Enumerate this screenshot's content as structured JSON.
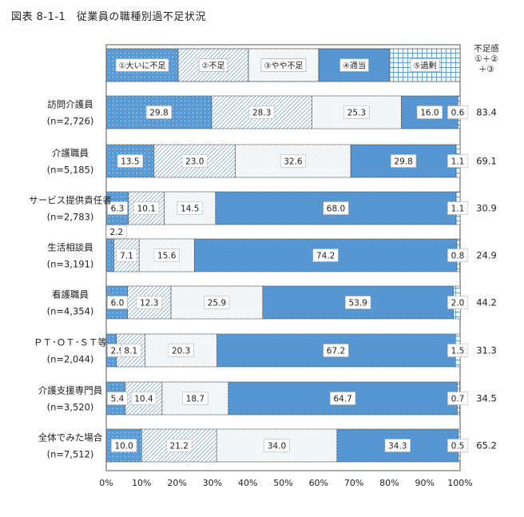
{
  "title": "図表 8-1-1　従業員の職種別過不足状況",
  "chart_data": {
    "type": "bar",
    "orientation": "horizontal",
    "stacked": "100%",
    "title": "図表 8-1-1　従業員の職種別過不足状況",
    "categories": [
      {
        "name": "訪問介護員",
        "n": "(n=2,726)"
      },
      {
        "name": "介護職員",
        "n": "(n=5,185)"
      },
      {
        "name": "サービス提供責任者",
        "n": "(n=2,783)"
      },
      {
        "name": "生活相談員",
        "n": "(n=3,191)"
      },
      {
        "name": "看護職員",
        "n": "(n=4,354)"
      },
      {
        "name": "ＰＴ･ＯＴ･ＳＴ等",
        "n": "(n=2,044)"
      },
      {
        "name": "介護支援専門員",
        "n": "(n=3,520)"
      },
      {
        "name": "全体でみた場合",
        "n": "(n=7,512)"
      }
    ],
    "series": [
      {
        "name": "①大いに不足",
        "values": [
          29.8,
          13.5,
          6.3,
          2.2,
          6.0,
          2.9,
          5.4,
          10.0
        ]
      },
      {
        "name": "②不足",
        "values": [
          28.3,
          23.0,
          10.1,
          7.1,
          12.3,
          8.1,
          10.4,
          21.2
        ]
      },
      {
        "name": "③やや不足",
        "values": [
          25.3,
          32.6,
          14.5,
          15.6,
          25.9,
          20.3,
          18.7,
          34.0
        ]
      },
      {
        "name": "④適当",
        "values": [
          16.0,
          29.8,
          68.0,
          74.2,
          53.9,
          67.2,
          64.7,
          34.3
        ]
      },
      {
        "name": "⑤過剰",
        "values": [
          0.6,
          1.1,
          1.1,
          0.8,
          2.0,
          1.5,
          0.7,
          0.5
        ]
      }
    ],
    "shortage_header": [
      "不足感",
      "①＋②",
      "＋③"
    ],
    "shortage_values": [
      "83.4",
      "69.1",
      "30.9",
      "24.9",
      "44.2",
      "31.3",
      "34.5",
      "65.2"
    ],
    "x_ticks": [
      "0%",
      "10%",
      "20%",
      "30%",
      "40%",
      "50%",
      "60%",
      "70%",
      "80%",
      "90%",
      "100%"
    ],
    "xlim": [
      0,
      100
    ],
    "grid": false,
    "legend_position": "top"
  }
}
